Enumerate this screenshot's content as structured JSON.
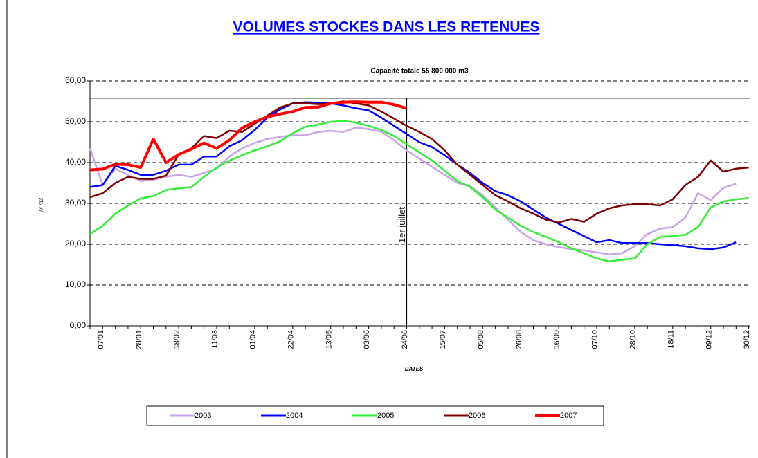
{
  "chart_data": {
    "type": "line",
    "title": "VOLUMES STOCKES DANS LES RETENUES",
    "subtitle": "Capacité totale 55 800 000 m3",
    "x_label": "DATES",
    "y_label": "M m3",
    "capacity": 55.8,
    "annotation": {
      "text": "1er juillet",
      "index": 25
    },
    "categories": [
      "07/01",
      null,
      null,
      "28/01",
      null,
      null,
      "18/02",
      null,
      null,
      "11/03",
      null,
      null,
      "01/04",
      null,
      null,
      "22/04",
      null,
      null,
      "13/05",
      null,
      null,
      "03/06",
      null,
      null,
      "24/06",
      null,
      null,
      "15/07",
      null,
      null,
      "05/08",
      null,
      null,
      "26/08",
      null,
      null,
      "16/09",
      null,
      null,
      "07/10",
      null,
      null,
      "28/10",
      null,
      null,
      "18/11",
      null,
      null,
      "09/12",
      null,
      null,
      "30/12",
      null
    ],
    "ylim": [
      0,
      60
    ],
    "yticks": [
      {
        "value": 0,
        "label": "0,00"
      },
      {
        "value": 10,
        "label": "10,00"
      },
      {
        "value": 20,
        "label": "20,00"
      },
      {
        "value": 30,
        "label": "30,00"
      },
      {
        "value": 40,
        "label": "40,00"
      },
      {
        "value": 50,
        "label": "50,00"
      },
      {
        "value": 60,
        "label": "60,00"
      }
    ],
    "grid": true,
    "series": [
      {
        "name": "2003",
        "color": "#c9a3ea",
        "values": [
          43.5,
          34.5,
          38.5,
          37.0,
          35.5,
          35.8,
          36.5,
          37.0,
          36.5,
          37.5,
          38.5,
          41.5,
          43.5,
          44.8,
          45.8,
          46.3,
          46.7,
          46.7,
          47.5,
          47.8,
          47.5,
          48.6,
          48.2,
          47.6,
          45.5,
          43.0,
          41.0,
          39.0,
          37.0,
          35.0,
          34.3,
          32.0,
          29.0,
          26.0,
          23.0,
          21.0,
          20.0,
          19.3,
          18.8,
          18.5,
          18.0,
          17.5,
          17.8,
          19.5,
          22.5,
          23.8,
          24.2,
          26.5,
          32.5,
          30.8,
          33.8,
          34.8,
          null
        ]
      },
      {
        "name": "2004",
        "color": "#0000ff",
        "values": [
          34.0,
          34.5,
          39.2,
          38.2,
          37.0,
          37.0,
          38.0,
          39.5,
          39.5,
          41.5,
          41.5,
          44.0,
          45.5,
          48.0,
          51.0,
          53.0,
          54.5,
          54.8,
          54.7,
          54.5,
          54.0,
          53.3,
          52.8,
          51.0,
          49.0,
          47.0,
          45.0,
          43.8,
          41.8,
          39.5,
          37.5,
          35.0,
          33.0,
          32.0,
          30.5,
          28.5,
          26.5,
          25.0,
          23.5,
          22.0,
          20.5,
          21.0,
          20.3,
          20.3,
          20.3,
          20.0,
          19.8,
          19.5,
          19.0,
          18.8,
          19.2,
          20.5,
          null
        ]
      },
      {
        "name": "2005",
        "color": "#33ee33",
        "values": [
          22.5,
          24.5,
          27.5,
          29.5,
          31.2,
          31.8,
          33.3,
          33.7,
          34.0,
          36.5,
          38.8,
          40.5,
          41.8,
          43.0,
          44.0,
          45.2,
          47.2,
          48.8,
          49.3,
          50.0,
          50.2,
          49.8,
          49.0,
          48.0,
          46.5,
          44.5,
          42.5,
          40.5,
          38.0,
          35.5,
          34.0,
          31.5,
          28.5,
          26.5,
          24.5,
          23.0,
          21.8,
          20.5,
          19.0,
          17.8,
          16.5,
          15.8,
          16.2,
          16.5,
          20.0,
          21.8,
          22.0,
          22.3,
          24.2,
          29.0,
          30.5,
          31.0,
          31.3
        ]
      },
      {
        "name": "2006",
        "color": "#800000",
        "values": [
          31.5,
          32.5,
          35.0,
          36.5,
          36.0,
          36.0,
          36.8,
          42.0,
          43.5,
          46.5,
          46.0,
          47.8,
          47.5,
          49.5,
          51.5,
          53.5,
          54.5,
          54.5,
          54.3,
          54.5,
          55.0,
          54.5,
          54.0,
          52.5,
          50.8,
          49.0,
          47.5,
          45.8,
          43.0,
          39.5,
          37.0,
          34.5,
          32.0,
          30.5,
          28.8,
          27.5,
          26.0,
          25.3,
          26.2,
          25.5,
          27.5,
          28.8,
          29.5,
          29.8,
          29.8,
          29.5,
          31.0,
          34.5,
          36.5,
          40.5,
          37.8,
          38.5,
          38.8
        ]
      },
      {
        "name": "2007",
        "color": "#ff0000",
        "width": 4,
        "values": [
          38.2,
          38.4,
          39.6,
          39.5,
          38.8,
          45.8,
          40.0,
          42.0,
          43.3,
          44.8,
          43.5,
          45.5,
          48.5,
          50.0,
          51.2,
          51.9,
          52.5,
          53.5,
          53.6,
          54.5,
          54.8,
          54.9,
          54.8,
          54.8,
          54.2,
          53.3,
          null,
          null,
          null,
          null,
          null,
          null,
          null,
          null,
          null,
          null,
          null,
          null,
          null,
          null,
          null,
          null,
          null,
          null,
          null,
          null,
          null,
          null,
          null,
          null,
          null,
          null,
          null
        ]
      }
    ]
  }
}
